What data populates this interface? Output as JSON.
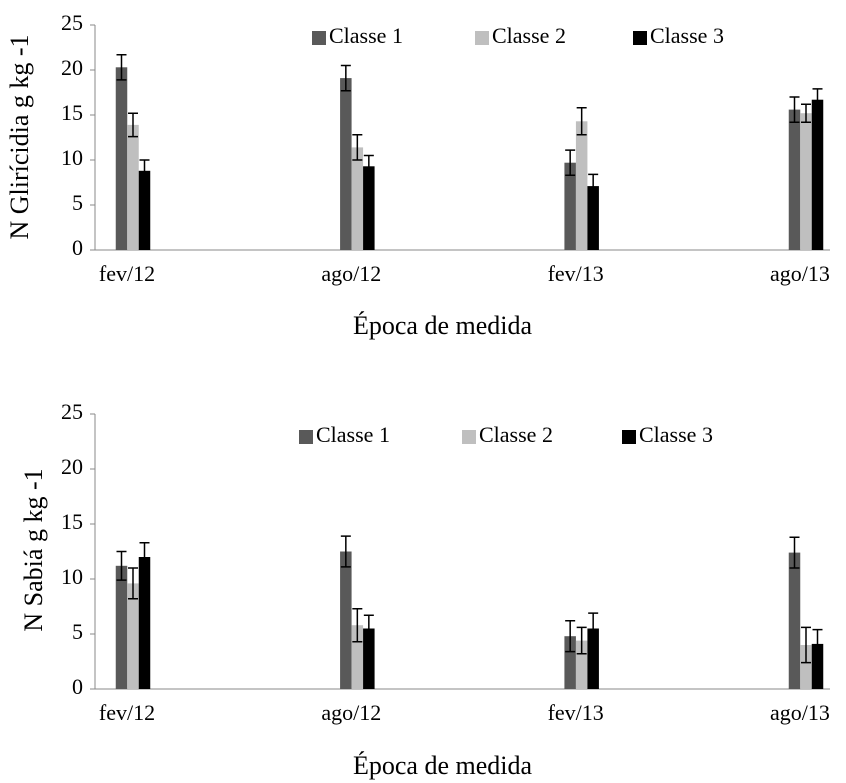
{
  "chart_data": [
    {
      "type": "bar",
      "y_label": "N Glirícidia g kg -1",
      "x_label": "Época de medida",
      "categories": [
        "fev/12",
        "ago/12",
        "fev/13",
        "ago/13"
      ],
      "ylim": [
        0,
        25
      ],
      "yticks": [
        0,
        5,
        10,
        15,
        20,
        25
      ],
      "series": [
        {
          "name": "Classe 1",
          "color": "#595959",
          "values": [
            20.3,
            19.1,
            9.7,
            15.6
          ],
          "errors": [
            1.4,
            1.4,
            1.4,
            1.4
          ]
        },
        {
          "name": "Classe 2",
          "color": "#bfbfbf",
          "values": [
            13.9,
            11.4,
            14.3,
            15.2
          ],
          "errors": [
            1.3,
            1.4,
            1.5,
            1.0
          ]
        },
        {
          "name": "Classe 3",
          "color": "#000000",
          "values": [
            8.8,
            9.3,
            7.1,
            16.7
          ],
          "errors": [
            1.2,
            1.2,
            1.3,
            1.2
          ]
        }
      ]
    },
    {
      "type": "bar",
      "y_label": "N Sabiá g kg -1",
      "x_label": "Época de medida",
      "categories": [
        "fev/12",
        "ago/12",
        "fev/13",
        "ago/13"
      ],
      "ylim": [
        0,
        25
      ],
      "yticks": [
        0,
        5,
        10,
        15,
        20,
        25
      ],
      "series": [
        {
          "name": "Classe 1",
          "color": "#595959",
          "values": [
            11.2,
            12.5,
            4.8,
            12.4
          ],
          "errors": [
            1.3,
            1.4,
            1.4,
            1.4
          ]
        },
        {
          "name": "Classe 2",
          "color": "#bfbfbf",
          "values": [
            9.6,
            5.8,
            4.4,
            4.0
          ],
          "errors": [
            1.4,
            1.5,
            1.2,
            1.6
          ]
        },
        {
          "name": "Classe 3",
          "color": "#000000",
          "values": [
            12.0,
            5.5,
            5.5,
            4.1
          ],
          "errors": [
            1.3,
            1.2,
            1.4,
            1.3
          ]
        }
      ]
    }
  ]
}
